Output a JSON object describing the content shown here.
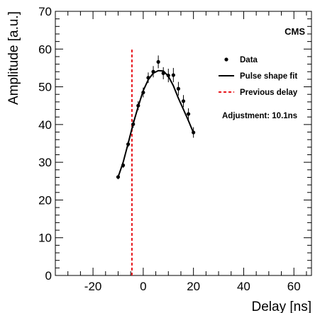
{
  "chart_data": {
    "type": "scatter",
    "title": "",
    "xlabel": "Delay [ns]",
    "ylabel": "Amplitude [a.u.]",
    "xlim": [
      -35,
      67
    ],
    "ylim": [
      0,
      70
    ],
    "x_ticks": [
      -20,
      0,
      20,
      40,
      60
    ],
    "y_ticks": [
      0,
      10,
      20,
      30,
      40,
      50,
      60,
      70
    ],
    "grid": false,
    "legend_position": "top-right",
    "label": "CMS",
    "annotation": "Adjustment: 10.1ns",
    "series": [
      {
        "name": "Data",
        "kind": "points-with-errorbars",
        "x": [
          -10,
          -8,
          -6,
          -4,
          -2,
          0,
          2,
          4,
          6,
          8,
          10,
          12,
          14,
          16,
          18,
          20
        ],
        "y": [
          26.1,
          29.2,
          34.8,
          40.1,
          45.0,
          48.5,
          52.4,
          54.0,
          56.6,
          53.6,
          53.0,
          53.1,
          49.5,
          46.2,
          42.8,
          37.9
        ],
        "err": [
          0.6,
          0.7,
          0.8,
          1.0,
          1.2,
          1.3,
          1.4,
          1.5,
          1.7,
          1.6,
          1.8,
          1.9,
          1.8,
          1.6,
          1.5,
          1.4
        ]
      },
      {
        "name": "Pulse shape fit",
        "kind": "line",
        "x": [
          -10,
          -8,
          -6,
          -4,
          -2,
          0,
          2,
          4,
          6,
          8,
          10,
          12,
          14,
          16,
          18,
          20
        ],
        "y": [
          26.1,
          30.0,
          35.0,
          40.2,
          44.8,
          49.0,
          51.9,
          53.6,
          54.3,
          54.2,
          52.8,
          50.3,
          47.0,
          44.0,
          41.0,
          37.8
        ]
      },
      {
        "name": "Previous delay",
        "kind": "vertical-line",
        "x": -4.5,
        "y_range": [
          0,
          60
        ]
      }
    ],
    "colors": {
      "data": "#000000",
      "fit": "#000000",
      "previous_delay": "#e8181e"
    }
  }
}
